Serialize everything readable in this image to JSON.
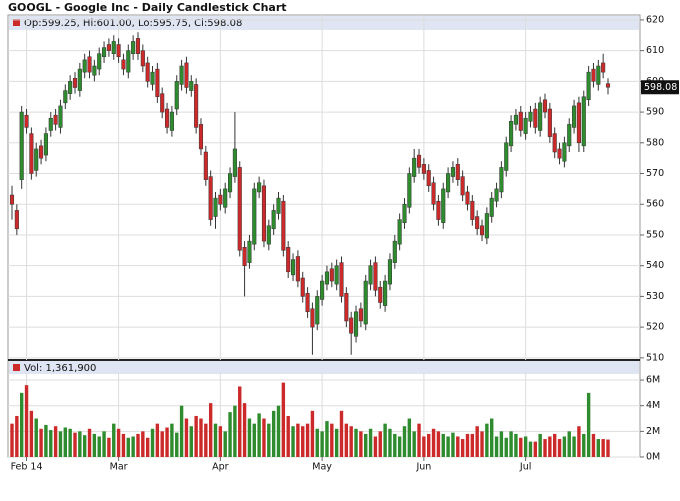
{
  "chart_data": {
    "type": "candlestick",
    "title": "GOOGL - Google Inc - Daily Candlestick Chart",
    "ohlc_label": "Op:599.25, Hi:601.00, Lo:595.75, Cl:598.08",
    "volume_label": "Vol: 1,361,900",
    "categories": [
      null,
      null,
      null,
      "Feb 14",
      null,
      null,
      null,
      null,
      null,
      null,
      null,
      null,
      null,
      null,
      null,
      null,
      null,
      null,
      null,
      null,
      null,
      null,
      "Mar",
      null,
      null,
      null,
      null,
      null,
      null,
      null,
      null,
      null,
      null,
      null,
      null,
      null,
      null,
      null,
      null,
      null,
      null,
      null,
      null,
      "Apr",
      null,
      null,
      null,
      null,
      null,
      null,
      null,
      null,
      null,
      null,
      null,
      null,
      null,
      null,
      null,
      null,
      null,
      null,
      null,
      null,
      "May",
      null,
      null,
      null,
      null,
      null,
      null,
      null,
      null,
      null,
      null,
      null,
      null,
      null,
      null,
      null,
      null,
      null,
      null,
      null,
      null,
      "Jun",
      null,
      null,
      null,
      null,
      null,
      null,
      null,
      null,
      null,
      null,
      null,
      null,
      null,
      null,
      null,
      null,
      null,
      null,
      null,
      null,
      "Jul",
      null,
      null,
      null,
      null,
      null,
      null,
      null,
      null,
      null,
      null,
      null,
      null,
      null,
      null,
      null,
      null,
      null
    ],
    "open": [
      563,
      558,
      568,
      589,
      583,
      571,
      579,
      576,
      584,
      589,
      585,
      593,
      596,
      601,
      597,
      603,
      608,
      602,
      604,
      608,
      612,
      609,
      612,
      607,
      603,
      609,
      614,
      610,
      606,
      599,
      604,
      596,
      591,
      584,
      591,
      599,
      606,
      597,
      599,
      586,
      577,
      569,
      556,
      563,
      559,
      564,
      569,
      572,
      546,
      541,
      547,
      564,
      566,
      547,
      552,
      557,
      561,
      546,
      537,
      543,
      536,
      531,
      526,
      521,
      529,
      534,
      539,
      534,
      541,
      531,
      523,
      517,
      526,
      521,
      534,
      541,
      533,
      527,
      534,
      541,
      547,
      554,
      559,
      569,
      576,
      573,
      571,
      567,
      561,
      554,
      564,
      569,
      573,
      569,
      564,
      561,
      556,
      553,
      549,
      556,
      561,
      564,
      571,
      579,
      586,
      590,
      583,
      587,
      591,
      584,
      594,
      591,
      583,
      578,
      574,
      579,
      585,
      593,
      579,
      594,
      604,
      599,
      606,
      599.25
    ],
    "high": [
      566,
      560,
      592,
      591,
      585,
      580,
      581,
      585,
      590,
      591,
      594,
      599,
      602,
      603,
      606,
      609,
      610,
      607,
      611,
      613,
      614,
      615,
      614,
      609,
      612,
      615,
      616,
      612,
      608,
      605,
      606,
      598,
      593,
      592,
      602,
      607,
      608,
      602,
      601,
      588,
      579,
      571,
      564,
      565,
      567,
      572,
      590,
      574,
      548,
      550,
      567,
      569,
      568,
      555,
      560,
      564,
      563,
      548,
      544,
      545,
      538,
      533,
      528,
      532,
      537,
      540,
      541,
      542,
      543,
      533,
      525,
      527,
      528,
      537,
      542,
      543,
      535,
      537,
      544,
      550,
      557,
      562,
      572,
      578,
      578,
      575,
      573,
      569,
      563,
      567,
      572,
      574,
      575,
      571,
      566,
      563,
      558,
      555,
      559,
      564,
      567,
      574,
      582,
      589,
      591,
      592,
      590,
      592,
      593,
      595,
      596,
      593,
      585,
      580,
      582,
      588,
      594,
      595,
      597,
      605,
      606,
      607,
      609,
      601
    ],
    "low": [
      555,
      550,
      565,
      583,
      568,
      569,
      573,
      574,
      582,
      584,
      583,
      591,
      594,
      596,
      595,
      601,
      601,
      600,
      602,
      606,
      608,
      607,
      606,
      602,
      601,
      607,
      607,
      603,
      598,
      597,
      593,
      588,
      583,
      582,
      589,
      597,
      596,
      595,
      583,
      576,
      566,
      553,
      552,
      558,
      557,
      562,
      567,
      543,
      530,
      539,
      545,
      562,
      546,
      545,
      550,
      555,
      543,
      536,
      535,
      533,
      528,
      523,
      511,
      519,
      527,
      532,
      533,
      532,
      528,
      520,
      511,
      515,
      520,
      519,
      532,
      530,
      526,
      525,
      532,
      539,
      545,
      552,
      557,
      567,
      570,
      568,
      564,
      558,
      553,
      552,
      562,
      567,
      566,
      561,
      558,
      553,
      550,
      548,
      547,
      554,
      559,
      562,
      569,
      577,
      584,
      582,
      581,
      585,
      583,
      582,
      588,
      580,
      575,
      573,
      572,
      577,
      583,
      577,
      577,
      592,
      598,
      597,
      601,
      595.75
    ],
    "close": [
      560,
      552,
      590,
      585,
      570,
      578,
      575,
      583,
      588,
      586,
      592,
      597,
      600,
      598,
      604,
      607,
      603,
      605,
      609,
      611,
      610,
      613,
      608,
      604,
      610,
      613,
      609,
      605,
      600,
      603,
      595,
      590,
      585,
      590,
      600,
      605,
      598,
      600,
      585,
      578,
      568,
      555,
      562,
      560,
      565,
      570,
      578,
      545,
      540,
      548,
      565,
      567,
      548,
      553,
      558,
      562,
      545,
      538,
      542,
      535,
      530,
      525,
      520,
      530,
      535,
      538,
      535,
      540,
      530,
      522,
      518,
      525,
      522,
      535,
      540,
      532,
      528,
      535,
      542,
      548,
      555,
      560,
      570,
      575,
      572,
      570,
      566,
      560,
      555,
      565,
      570,
      572,
      568,
      563,
      560,
      555,
      552,
      550,
      557,
      562,
      565,
      572,
      580,
      587,
      589,
      584,
      588,
      590,
      585,
      593,
      590,
      582,
      577,
      575,
      580,
      586,
      592,
      580,
      595,
      603,
      600,
      605,
      603,
      598.08
    ],
    "volume": [
      2600000,
      3200000,
      5000000,
      5600000,
      3600000,
      3000000,
      2200000,
      2500000,
      2100000,
      2400000,
      2000000,
      2300000,
      2200000,
      1900000,
      2000000,
      1700000,
      2200000,
      1800000,
      1600000,
      2000000,
      1500000,
      2600000,
      2200000,
      1800000,
      1500000,
      1600000,
      1800000,
      2000000,
      1500000,
      2200000,
      2600000,
      2000000,
      2300000,
      2600000,
      1900000,
      4000000,
      3000000,
      2400000,
      3200000,
      3000000,
      2600000,
      4200000,
      2600000,
      2400000,
      2000000,
      3500000,
      4000000,
      5500000,
      4200000,
      3000000,
      2600000,
      3400000,
      3000000,
      2600000,
      3600000,
      4000000,
      5800000,
      3200000,
      2400000,
      2600000,
      2400000,
      2600000,
      3600000,
      2200000,
      2000000,
      2800000,
      2600000,
      2200000,
      3600000,
      2600000,
      2400000,
      2200000,
      2000000,
      1800000,
      2200000,
      1600000,
      2000000,
      2600000,
      2200000,
      1800000,
      1600000,
      2400000,
      3000000,
      2000000,
      2600000,
      1600000,
      1800000,
      2200000,
      2000000,
      1800000,
      1600000,
      1900000,
      1600000,
      1400000,
      1800000,
      1800000,
      2400000,
      2000000,
      2600000,
      3000000,
      1600000,
      2000000,
      1500000,
      2000000,
      1800000,
      1500000,
      1600000,
      1200000,
      1200000,
      1800000,
      1400000,
      1600000,
      1800000,
      1400000,
      1600000,
      2000000,
      1600000,
      2400000,
      1800000,
      5000000,
      1800000,
      1400000,
      1400000,
      1361900
    ],
    "up_color": "#2e8b2e",
    "down_color": "#cc2a2a",
    "ylim": [
      509.3,
      621.6
    ],
    "yticks": [
      510,
      520,
      530,
      540,
      550,
      560,
      570,
      580,
      590,
      600,
      610,
      620
    ],
    "volume_lim": [
      0,
      6550000
    ],
    "volume_ticks": [
      {
        "value": 0,
        "label": "0M"
      },
      {
        "value": 2000000,
        "label": "2M"
      },
      {
        "value": 4000000,
        "label": "4M"
      },
      {
        "value": 6000000,
        "label": "6M"
      }
    ],
    "grid": true
  }
}
